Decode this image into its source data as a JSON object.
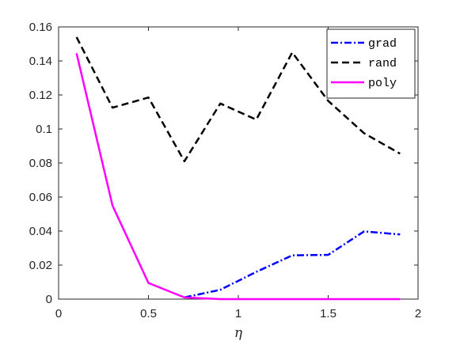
{
  "chart_data": {
    "type": "line",
    "xlabel": "η",
    "ylabel": "",
    "xlim": [
      0,
      2
    ],
    "ylim": [
      0,
      0.16
    ],
    "x_ticks": [
      0,
      0.5,
      1,
      1.5,
      2
    ],
    "x_tick_labels": [
      "0",
      "0.5",
      "1",
      "1.5",
      "2"
    ],
    "y_ticks": [
      0,
      0.02,
      0.04,
      0.06,
      0.08,
      0.1,
      0.12,
      0.14,
      0.16
    ],
    "y_tick_labels": [
      "0",
      "0.02",
      "0.04",
      "0.06",
      "0.08",
      "0.1",
      "0.12",
      "0.14",
      "0.16"
    ],
    "grid": false,
    "legend_position": "top-right",
    "series": [
      {
        "name": "grad",
        "color": "#0000ff",
        "line_style": "dash-dot",
        "x": [
          0.7,
          0.9,
          1.1,
          1.3,
          1.5,
          1.7,
          1.9
        ],
        "y": [
          0.001,
          0.0055,
          0.016,
          0.0257,
          0.026,
          0.0398,
          0.038
        ]
      },
      {
        "name": "rand",
        "color": "#000000",
        "line_style": "dashed",
        "x": [
          0.1,
          0.3,
          0.5,
          0.7,
          0.9,
          1.1,
          1.3,
          1.5,
          1.7,
          1.9
        ],
        "y": [
          0.154,
          0.1125,
          0.1185,
          0.081,
          0.115,
          0.1055,
          0.145,
          0.1165,
          0.0975,
          0.0855
        ]
      },
      {
        "name": "poly",
        "color": "#ff00ff",
        "line_style": "solid",
        "x": [
          0.1,
          0.3,
          0.5,
          0.7,
          0.9,
          1.1,
          1.3,
          1.5,
          1.7,
          1.9
        ],
        "y": [
          0.1445,
          0.055,
          0.0095,
          0.001,
          0.0,
          0.0,
          0.0,
          0.0,
          0.0,
          0.0
        ]
      }
    ]
  }
}
